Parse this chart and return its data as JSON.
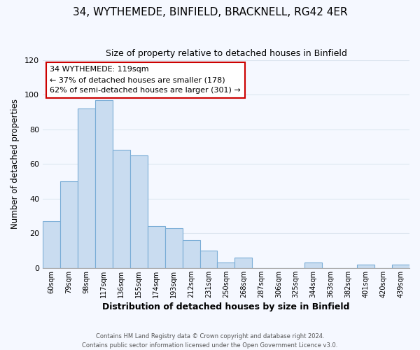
{
  "title": "34, WYTHEMEDE, BINFIELD, BRACKNELL, RG42 4ER",
  "subtitle": "Size of property relative to detached houses in Binfield",
  "xlabel": "Distribution of detached houses by size in Binfield",
  "ylabel": "Number of detached properties",
  "bar_labels": [
    "60sqm",
    "79sqm",
    "98sqm",
    "117sqm",
    "136sqm",
    "155sqm",
    "174sqm",
    "193sqm",
    "212sqm",
    "231sqm",
    "250sqm",
    "268sqm",
    "287sqm",
    "306sqm",
    "325sqm",
    "344sqm",
    "363sqm",
    "382sqm",
    "401sqm",
    "420sqm",
    "439sqm"
  ],
  "bar_heights": [
    27,
    50,
    92,
    97,
    68,
    65,
    24,
    23,
    16,
    10,
    3,
    6,
    0,
    0,
    0,
    3,
    0,
    0,
    2,
    0,
    2
  ],
  "bar_color": "#c9dcf0",
  "bar_edge_color": "#7aadd6",
  "ylim": [
    0,
    120
  ],
  "yticks": [
    0,
    20,
    40,
    60,
    80,
    100,
    120
  ],
  "annotation_title": "34 WYTHEMEDE: 119sqm",
  "annotation_line1": "← 37% of detached houses are smaller (178)",
  "annotation_line2": "62% of semi-detached houses are larger (301) →",
  "annotation_box_color": "#ffffff",
  "annotation_box_edgecolor": "#cc0000",
  "footer1": "Contains HM Land Registry data © Crown copyright and database right 2024.",
  "footer2": "Contains public sector information licensed under the Open Government Licence v3.0.",
  "bg_color": "#f5f8ff",
  "grid_color": "#dde6f0"
}
